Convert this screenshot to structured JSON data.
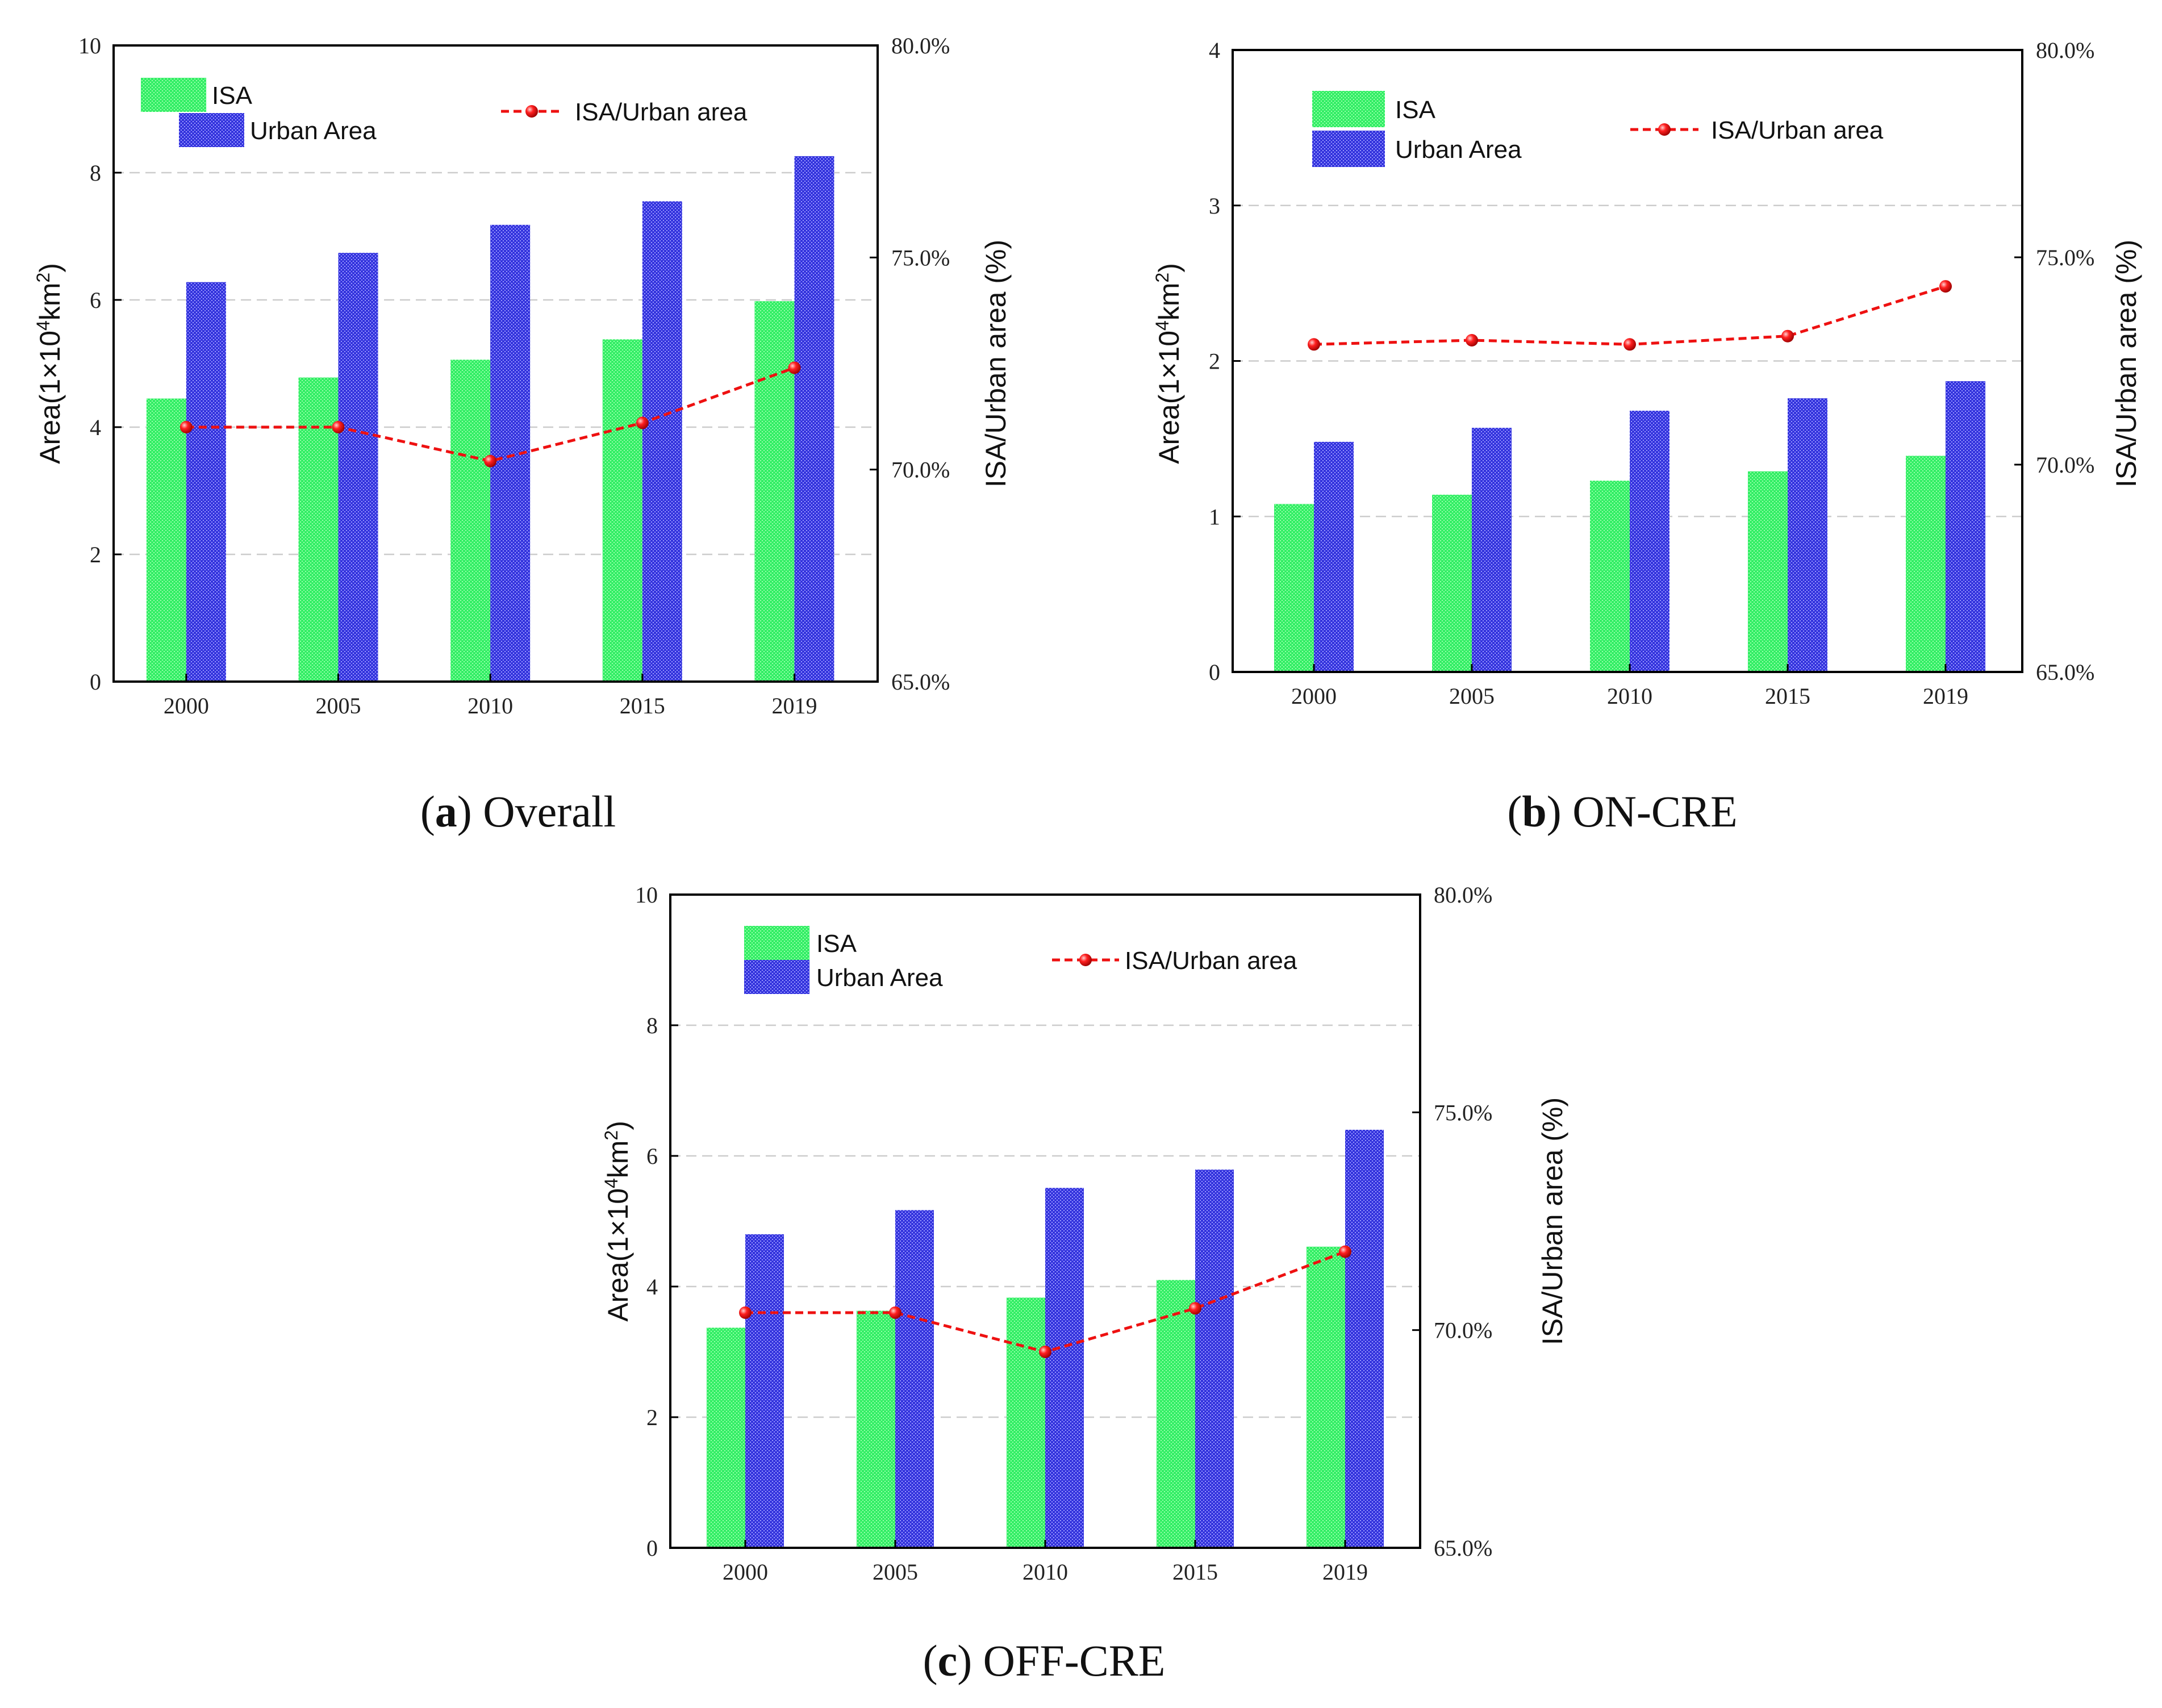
{
  "colors": {
    "isa_bar": "#33ee66",
    "urban_bar": "#3333dd",
    "ratio_line": "#ee1111",
    "axis": "#000000",
    "grid": "#cccccc"
  },
  "chart_data": [
    {
      "panel": "a",
      "caption_letter": "a",
      "caption_text": ") Overall",
      "type": "bar",
      "categories": [
        "2000",
        "2005",
        "2010",
        "2015",
        "2019"
      ],
      "series": [
        {
          "name": "ISA",
          "axis": "left",
          "values": [
            4.45,
            4.78,
            5.06,
            5.38,
            5.98
          ]
        },
        {
          "name": "Urban Area",
          "axis": "left",
          "values": [
            6.28,
            6.74,
            7.18,
            7.55,
            8.26
          ]
        },
        {
          "name": "ISA/Urban area",
          "type": "line",
          "axis": "right",
          "values": [
            71.0,
            71.0,
            70.2,
            71.1,
            72.4
          ]
        }
      ],
      "ylabel_pre": "Area(1×10",
      "ylabel_sup1": "4",
      "ylabel_mid": "km",
      "ylabel_sup2": "2",
      "ylabel_post": ")",
      "y2label": "ISA/Urban area (%)",
      "ylim": [
        0,
        10
      ],
      "yticks": [
        "0",
        "2",
        "4",
        "6",
        "8",
        "10"
      ],
      "y2lim": [
        65,
        80
      ],
      "y2ticks": [
        "65.0%",
        "70.0%",
        "75.0%",
        "80.0%"
      ],
      "grid": true,
      "legend": [
        "ISA",
        "Urban Area",
        "ISA/Urban area"
      ]
    },
    {
      "panel": "b",
      "caption_letter": "b",
      "caption_text": ") ON-CRE",
      "type": "bar",
      "categories": [
        "2000",
        "2005",
        "2010",
        "2015",
        "2019"
      ],
      "series": [
        {
          "name": "ISA",
          "axis": "left",
          "values": [
            1.08,
            1.14,
            1.23,
            1.29,
            1.39
          ]
        },
        {
          "name": "Urban Area",
          "axis": "left",
          "values": [
            1.48,
            1.57,
            1.68,
            1.76,
            1.87
          ]
        },
        {
          "name": "ISA/Urban area",
          "type": "line",
          "axis": "right",
          "values": [
            72.9,
            73.0,
            72.9,
            73.1,
            74.3
          ]
        }
      ],
      "ylabel_pre": "Area(1×10",
      "ylabel_sup1": "4",
      "ylabel_mid": "km",
      "ylabel_sup2": "2",
      "ylabel_post": ")",
      "y2label": "ISA/Urban area (%)",
      "ylim": [
        0,
        4
      ],
      "yticks": [
        "0",
        "1",
        "2",
        "3",
        "4"
      ],
      "y2lim": [
        65,
        80
      ],
      "y2ticks": [
        "65.0%",
        "70.0%",
        "75.0%",
        "80.0%"
      ],
      "grid": true,
      "legend": [
        "ISA",
        "Urban Area",
        "ISA/Urban area"
      ]
    },
    {
      "panel": "c",
      "caption_letter": "c",
      "caption_text": ") OFF-CRE",
      "type": "bar",
      "categories": [
        "2000",
        "2005",
        "2010",
        "2015",
        "2019"
      ],
      "series": [
        {
          "name": "ISA",
          "axis": "left",
          "values": [
            3.37,
            3.63,
            3.83,
            4.1,
            4.61
          ]
        },
        {
          "name": "Urban Area",
          "axis": "left",
          "values": [
            4.8,
            5.17,
            5.51,
            5.79,
            6.4
          ]
        },
        {
          "name": "ISA/Urban area",
          "type": "line",
          "axis": "right",
          "values": [
            70.4,
            70.4,
            69.5,
            70.5,
            71.8
          ]
        }
      ],
      "ylabel_pre": "Area(1×10",
      "ylabel_sup1": "4",
      "ylabel_mid": "km",
      "ylabel_sup2": "2",
      "ylabel_post": ")",
      "y2label": "ISA/Urban area (%)",
      "ylim": [
        0,
        10
      ],
      "yticks": [
        "0",
        "2",
        "4",
        "6",
        "8",
        "10"
      ],
      "y2lim": [
        65,
        80
      ],
      "y2ticks": [
        "65.0%",
        "70.0%",
        "75.0%",
        "80.0%"
      ],
      "grid": true,
      "legend": [
        "ISA",
        "Urban Area",
        "ISA/Urban area"
      ]
    }
  ]
}
